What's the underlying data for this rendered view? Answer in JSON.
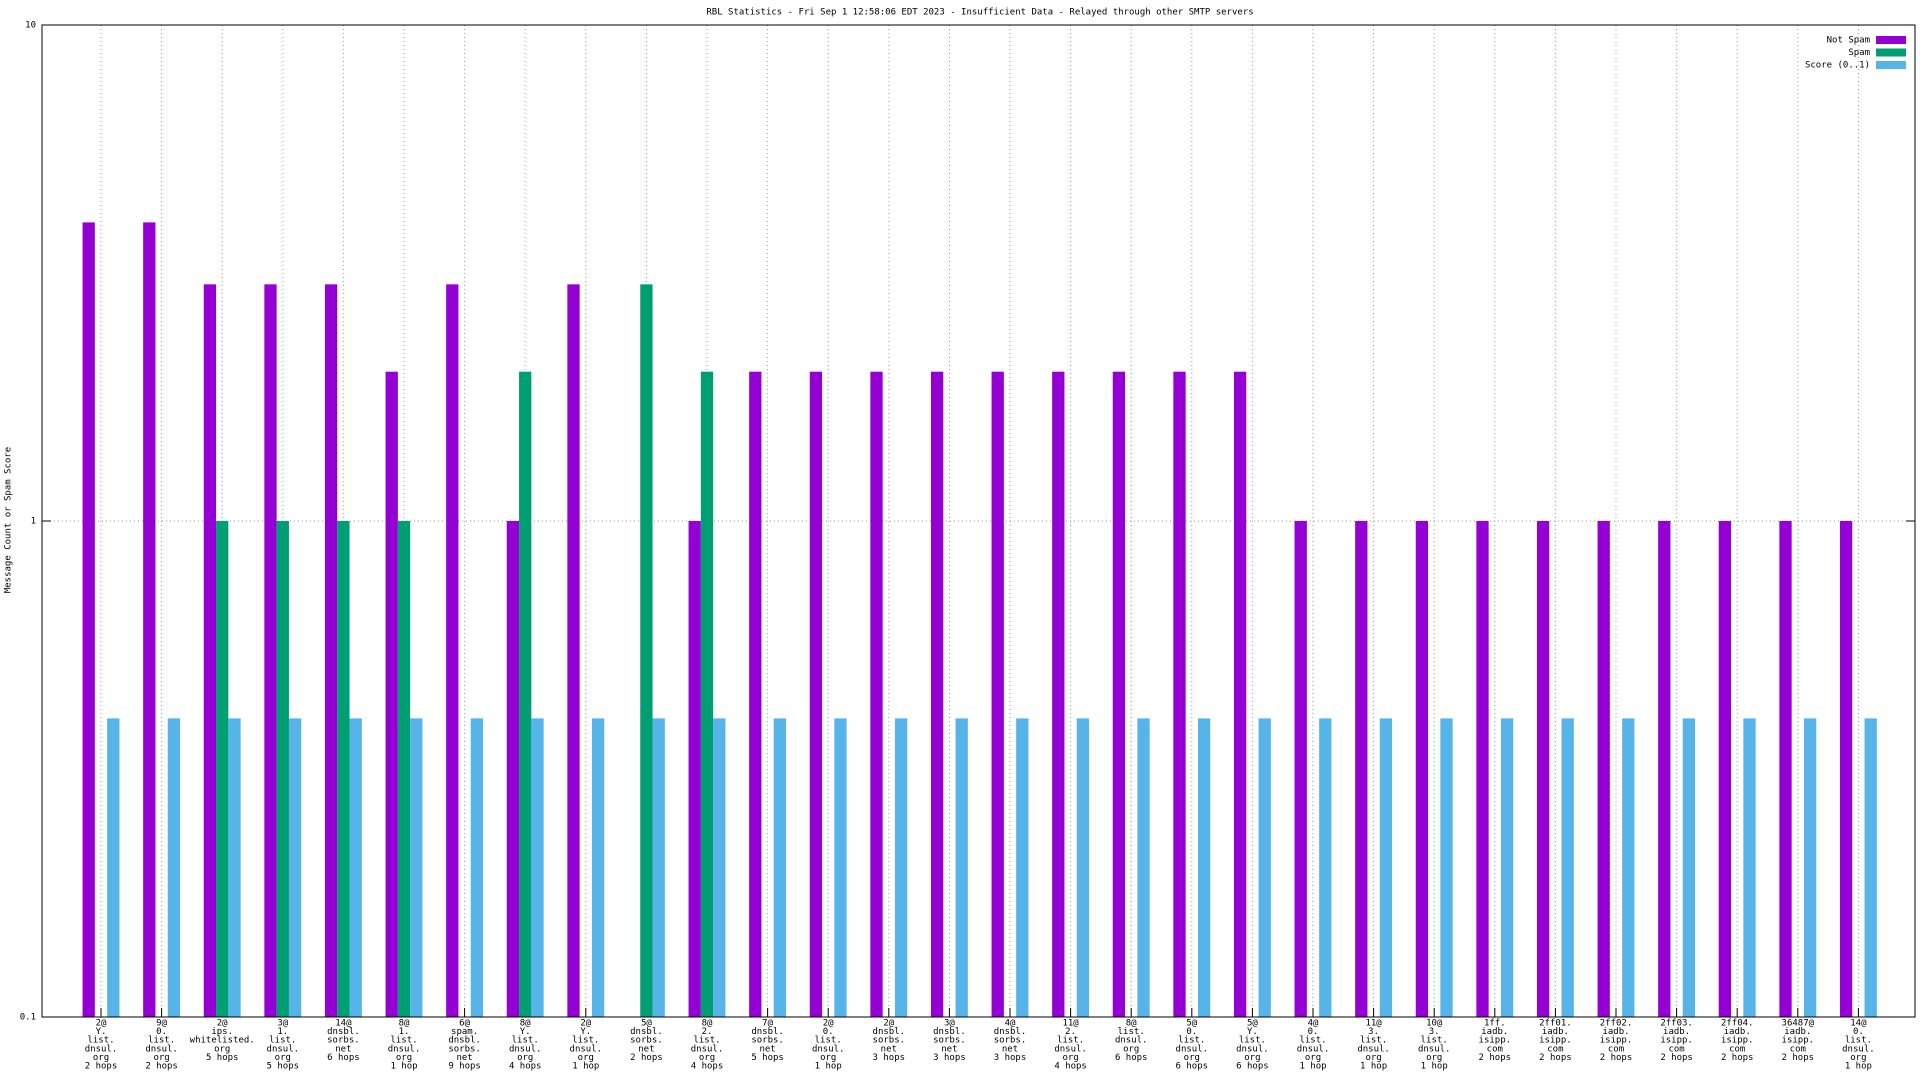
{
  "chart_data": {
    "type": "bar",
    "title": "RBL Statistics - Fri Sep  1 12:58:06 EDT 2023 - Insufficient Data - Relayed through other SMTP servers",
    "ylabel": "Message Count or Spam Score",
    "log_scale": true,
    "grid": true,
    "legend_position": "top-right",
    "ylim": [
      0.1,
      10
    ],
    "yticks": [
      0.1,
      1,
      10
    ],
    "categories": [
      [
        "2@",
        "Y.",
        "list.",
        "dnsul.",
        "org",
        "2 hops"
      ],
      [
        "9@",
        "0.",
        "list.",
        "dnsul.",
        "org",
        "2 hops"
      ],
      [
        "2@",
        "ips.",
        "whitelisted.",
        "org",
        "5 hops"
      ],
      [
        "3@",
        "1.",
        "list.",
        "dnsul.",
        "org",
        "5 hops"
      ],
      [
        "14@",
        "dnsbl.",
        "sorbs.",
        "net",
        "6 hops"
      ],
      [
        "8@",
        "1.",
        "list.",
        "dnsul.",
        "org",
        "1 hop"
      ],
      [
        "6@",
        "spam.",
        "dnsbl.",
        "sorbs.",
        "net",
        "9 hops"
      ],
      [
        "8@",
        "Y.",
        "list.",
        "dnsul.",
        "org",
        "4 hops"
      ],
      [
        "2@",
        "Y.",
        "list.",
        "dnsul.",
        "org",
        "1 hop"
      ],
      [
        "5@",
        "dnsbl.",
        "sorbs.",
        "net",
        "2 hops"
      ],
      [
        "8@",
        "2.",
        "list.",
        "dnsul.",
        "org",
        "4 hops"
      ],
      [
        "7@",
        "dnsbl.",
        "sorbs.",
        "net",
        "5 hops"
      ],
      [
        "2@",
        "0.",
        "list.",
        "dnsul.",
        "org",
        "1 hop"
      ],
      [
        "2@",
        "dnsbl.",
        "sorbs.",
        "net",
        "3 hops"
      ],
      [
        "3@",
        "dnsbl.",
        "sorbs.",
        "net",
        "3 hops"
      ],
      [
        "4@",
        "dnsbl.",
        "sorbs.",
        "net",
        "3 hops"
      ],
      [
        "11@",
        "2.",
        "list.",
        "dnsul.",
        "org",
        "4 hops"
      ],
      [
        "8@",
        "list.",
        "dnsul.",
        "org",
        "6 hops"
      ],
      [
        "5@",
        "0.",
        "list.",
        "dnsul.",
        "org",
        "6 hops"
      ],
      [
        "5@",
        "Y.",
        "list.",
        "dnsul.",
        "org",
        "6 hops"
      ],
      [
        "4@",
        "0.",
        "list.",
        "dnsul.",
        "org",
        "1 hop"
      ],
      [
        "11@",
        "3.",
        "list.",
        "dnsul.",
        "org",
        "1 hop"
      ],
      [
        "10@",
        "3.",
        "list.",
        "dnsul.",
        "org",
        "1 hop"
      ],
      [
        "1ff.",
        "iadb.",
        "isipp.",
        "com",
        "2 hops"
      ],
      [
        "2ff01.",
        "iadb.",
        "isipp.",
        "com",
        "2 hops"
      ],
      [
        "2ff02.",
        "iadb.",
        "isipp.",
        "com",
        "2 hops"
      ],
      [
        "2ff03.",
        "iadb.",
        "isipp.",
        "com",
        "2 hops"
      ],
      [
        "2ff04.",
        "iadb.",
        "isipp.",
        "com",
        "2 hops"
      ],
      [
        "36487@",
        "iadb.",
        "isipp.",
        "com",
        "2 hops"
      ],
      [
        "14@",
        "0.",
        "list.",
        "dnsul.",
        "org",
        "1 hop"
      ]
    ],
    "series": [
      {
        "name": "Not Spam",
        "color": "#9400d3",
        "values": [
          4,
          4,
          3,
          3,
          3,
          2,
          3,
          1,
          3,
          null,
          1,
          2,
          2,
          2,
          2,
          2,
          2,
          2,
          2,
          2,
          1,
          1,
          1,
          1,
          1,
          1,
          1,
          1,
          1,
          1
        ]
      },
      {
        "name": "Spam",
        "color": "#009e73",
        "values": [
          null,
          null,
          1,
          1,
          1,
          1,
          null,
          2,
          null,
          3,
          2,
          null,
          null,
          null,
          null,
          null,
          null,
          null,
          null,
          null,
          null,
          null,
          null,
          null,
          null,
          null,
          null,
          null,
          null,
          null
        ]
      },
      {
        "name": "Score (0..1)",
        "color": "#56b4e9",
        "values": [
          0.4,
          0.4,
          0.4,
          0.4,
          0.4,
          0.4,
          0.4,
          0.4,
          0.4,
          0.4,
          0.4,
          0.4,
          0.4,
          0.4,
          0.4,
          0.4,
          0.4,
          0.4,
          0.4,
          0.4,
          0.4,
          0.4,
          0.4,
          0.4,
          0.4,
          0.4,
          0.4,
          0.4,
          0.4,
          0.4
        ]
      }
    ]
  }
}
